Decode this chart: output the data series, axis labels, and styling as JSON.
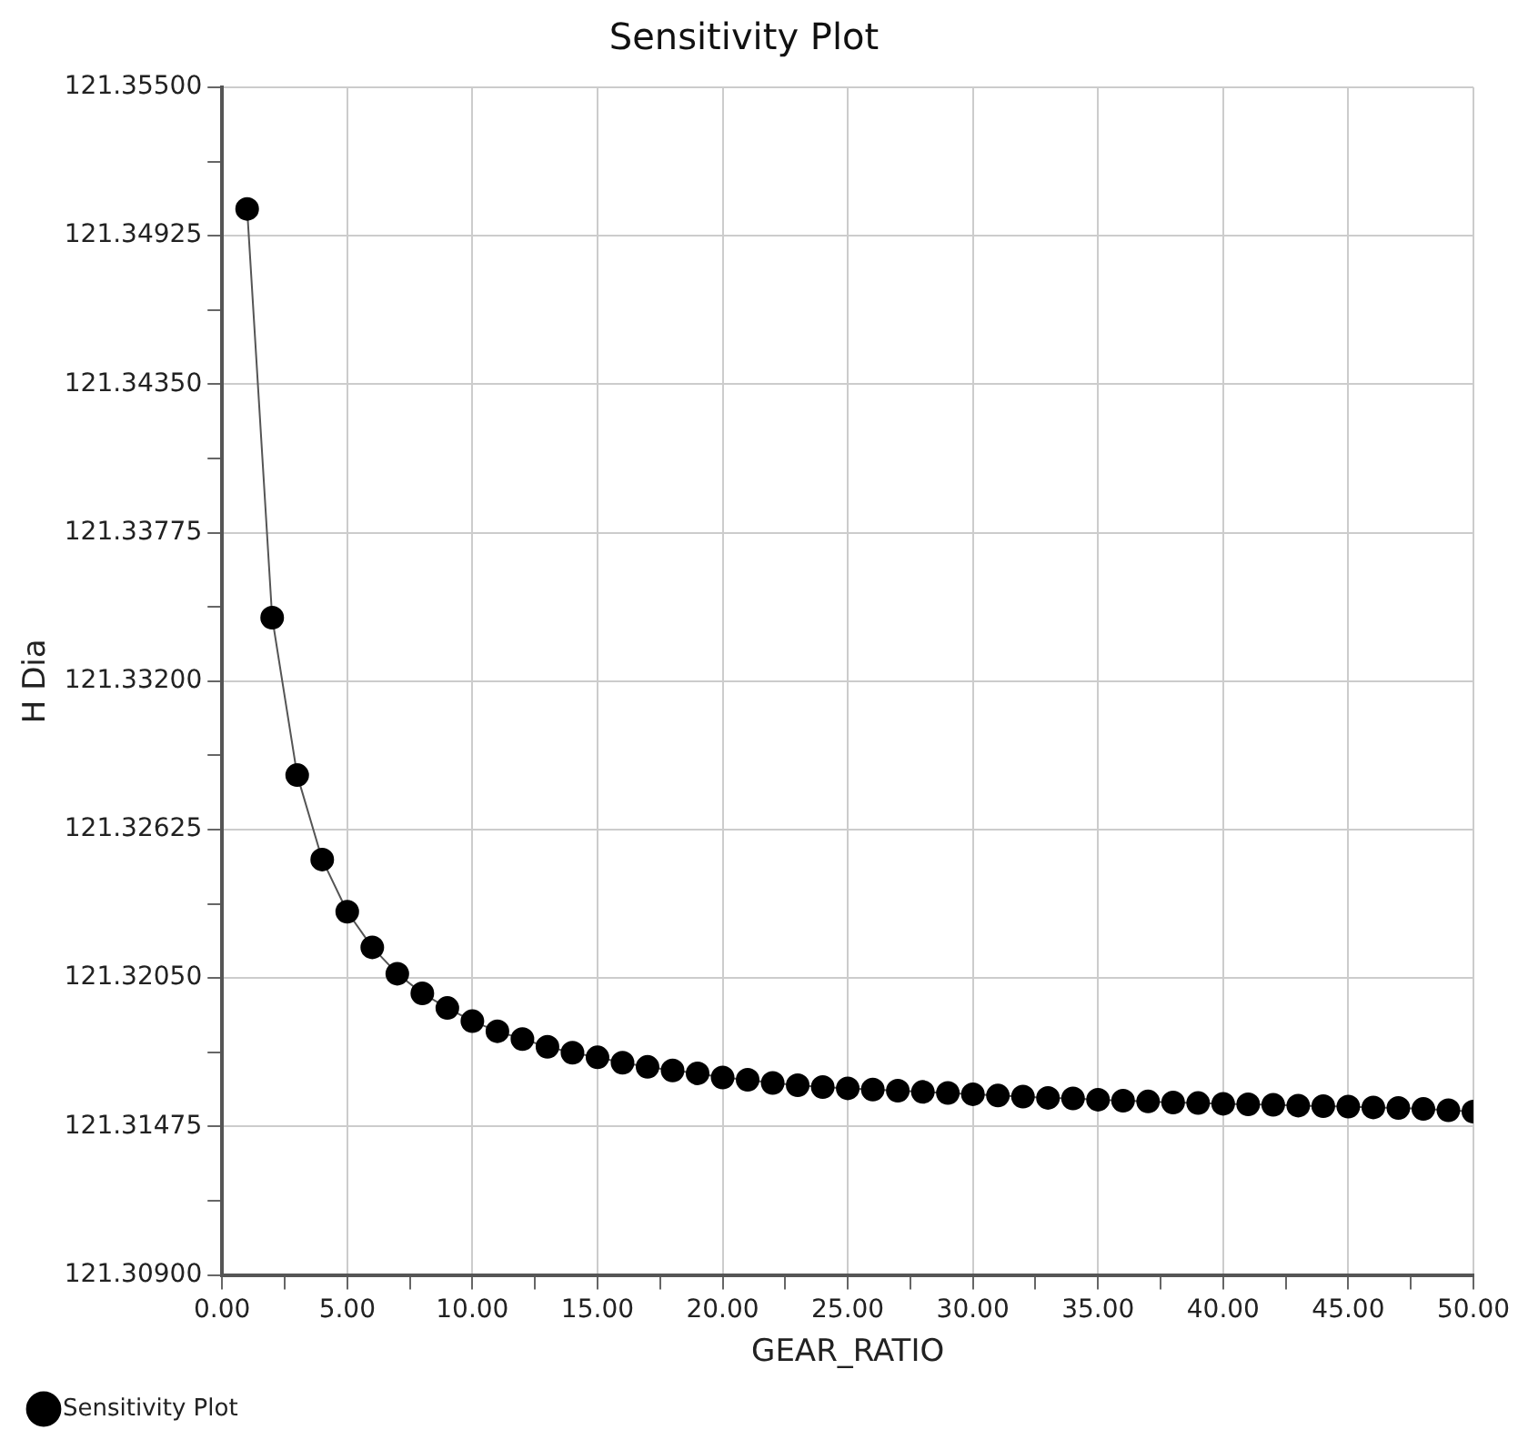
{
  "chart_data": {
    "type": "line",
    "title": "Sensitivity Plot",
    "xlabel": "GEAR_RATIO",
    "ylabel": "H Dia",
    "x": [
      1,
      2,
      3,
      4,
      5,
      6,
      7,
      8,
      9,
      10,
      11,
      12,
      13,
      14,
      15,
      16,
      17,
      18,
      19,
      20,
      21,
      22,
      23,
      24,
      25,
      26,
      27,
      28,
      29,
      30,
      31,
      32,
      33,
      34,
      35,
      36,
      37,
      38,
      39,
      40,
      41,
      42,
      43,
      44,
      45,
      46,
      47,
      48,
      49,
      50
    ],
    "series": [
      {
        "name": "Sensitivity Plot",
        "color": "#000000",
        "values": [
          121.35029,
          121.33446,
          121.32836,
          121.32509,
          121.32307,
          121.32169,
          121.32067,
          121.31991,
          121.31934,
          121.31883,
          121.31844,
          121.31814,
          121.31784,
          121.31761,
          121.31743,
          121.31722,
          121.31706,
          121.31692,
          121.31681,
          121.31665,
          121.31656,
          121.31644,
          121.31635,
          121.31628,
          121.31623,
          121.31618,
          121.31614,
          121.31609,
          121.31605,
          121.316,
          121.31595,
          121.31591,
          121.31586,
          121.31584,
          121.31579,
          121.31575,
          121.31572,
          121.31568,
          121.31566,
          121.31563,
          121.31561,
          121.31559,
          121.31556,
          121.31554,
          121.31552,
          121.31549,
          121.31547,
          121.31543,
          121.31538,
          121.31533
        ]
      }
    ],
    "xlim": [
      0,
      50
    ],
    "xticks": [
      {
        "value": 0,
        "label": "0.00"
      },
      {
        "value": 2.5,
        "label": null
      },
      {
        "value": 5,
        "label": "5.00"
      },
      {
        "value": 7.5,
        "label": null
      },
      {
        "value": 10,
        "label": "10.00"
      },
      {
        "value": 12.5,
        "label": null
      },
      {
        "value": 15,
        "label": "15.00"
      },
      {
        "value": 17.5,
        "label": null
      },
      {
        "value": 20,
        "label": "20.00"
      },
      {
        "value": 22.5,
        "label": null
      },
      {
        "value": 25,
        "label": "25.00"
      },
      {
        "value": 27.5,
        "label": null
      },
      {
        "value": 30,
        "label": "30.00"
      },
      {
        "value": 32.5,
        "label": null
      },
      {
        "value": 35,
        "label": "35.00"
      },
      {
        "value": 37.5,
        "label": null
      },
      {
        "value": 40,
        "label": "40.00"
      },
      {
        "value": 42.5,
        "label": null
      },
      {
        "value": 45,
        "label": "45.00"
      },
      {
        "value": 47.5,
        "label": null
      },
      {
        "value": 50,
        "label": "50.00"
      }
    ],
    "ylim": [
      121.309,
      121.355
    ],
    "yticks": [
      {
        "value": 121.309,
        "label": "121.30900"
      },
      {
        "value": 121.311875,
        "label": null
      },
      {
        "value": 121.31475,
        "label": "121.31475"
      },
      {
        "value": 121.317625,
        "label": null
      },
      {
        "value": 121.3205,
        "label": "121.32050"
      },
      {
        "value": 121.323375,
        "label": null
      },
      {
        "value": 121.32625,
        "label": "121.32625"
      },
      {
        "value": 121.329125,
        "label": null
      },
      {
        "value": 121.332,
        "label": "121.33200"
      },
      {
        "value": 121.334875,
        "label": null
      },
      {
        "value": 121.33775,
        "label": "121.33775"
      },
      {
        "value": 121.340625,
        "label": null
      },
      {
        "value": 121.3435,
        "label": "121.34350"
      },
      {
        "value": 121.346375,
        "label": null
      },
      {
        "value": 121.34925,
        "label": "121.34925"
      },
      {
        "value": 121.352125,
        "label": null
      },
      {
        "value": 121.355,
        "label": "121.35500"
      }
    ],
    "grid": true,
    "legend": "bottom left",
    "marker": "circle",
    "line_style": "solid"
  }
}
